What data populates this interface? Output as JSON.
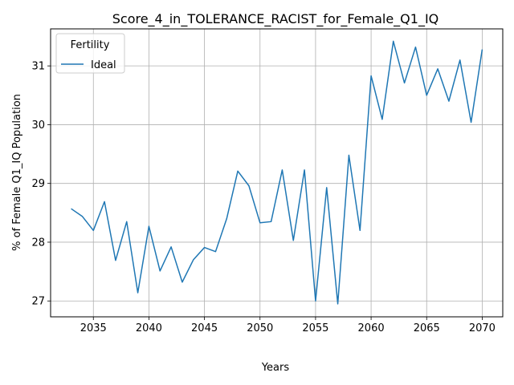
{
  "chart_data": {
    "type": "line",
    "title": "Score_4_in_TOLERANCE_RACIST_for_Female_Q1_IQ",
    "xlabel": "Years",
    "ylabel": "% of Female Q1_IQ Population",
    "xlim": [
      2031.15,
      2071.85
    ],
    "ylim": [
      26.73,
      31.63
    ],
    "xticks": [
      2035,
      2040,
      2045,
      2050,
      2055,
      2060,
      2065,
      2070
    ],
    "yticks": [
      27,
      28,
      29,
      30,
      31
    ],
    "grid": true,
    "legend": {
      "title": "Fertility",
      "placement": "top-left"
    },
    "series": [
      {
        "name": "Ideal",
        "color": "#1f77b4",
        "x": [
          2033,
          2034,
          2035,
          2036,
          2037,
          2038,
          2039,
          2040,
          2041,
          2042,
          2043,
          2044,
          2045,
          2046,
          2047,
          2048,
          2049,
          2050,
          2051,
          2052,
          2053,
          2054,
          2055,
          2056,
          2057,
          2058,
          2059,
          2060,
          2061,
          2062,
          2063,
          2064,
          2065,
          2066,
          2067,
          2068,
          2069,
          2070
        ],
        "y": [
          28.57,
          28.44,
          28.2,
          28.69,
          27.69,
          28.35,
          27.14,
          28.27,
          27.51,
          27.92,
          27.32,
          27.7,
          27.91,
          27.84,
          28.4,
          29.21,
          28.96,
          28.33,
          28.35,
          29.23,
          28.03,
          29.23,
          27.0,
          28.93,
          26.95,
          29.48,
          28.2,
          30.83,
          30.09,
          31.42,
          30.71,
          31.32,
          30.5,
          30.95,
          30.4,
          31.1,
          30.04,
          31.28
        ]
      }
    ]
  }
}
